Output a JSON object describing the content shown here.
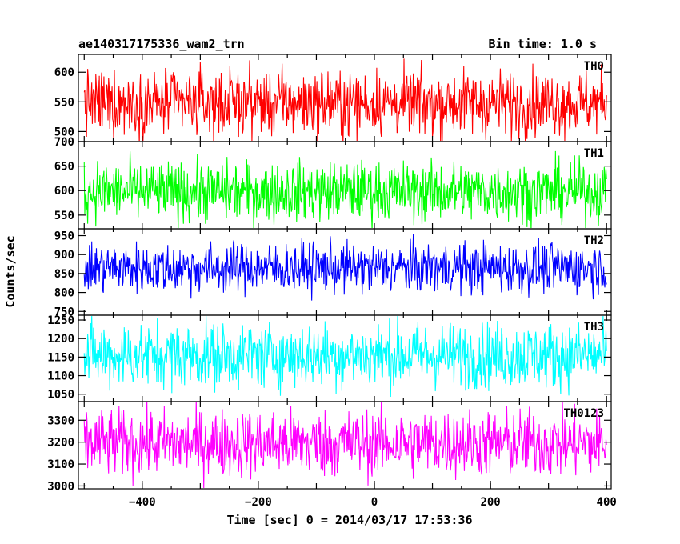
{
  "chart_data": {
    "type": "line",
    "title_left": "ae140317175336_wam2_trn",
    "title_right": "Bin time: 1.0 s",
    "xlabel": "Time [sec] 0 = 2014/03/17 17:53:36",
    "ylabel": "Counts/sec",
    "xlim": [
      -510,
      408
    ],
    "x_ticks": [
      -400,
      -200,
      0,
      200,
      400
    ],
    "data_x_range": [
      -500,
      400
    ],
    "bin_time_s": 1.0,
    "panels": [
      {
        "name": "TH0",
        "color": "#ff0000",
        "ylim": [
          483,
          630
        ],
        "yticks": [
          500,
          550,
          600
        ],
        "mean": 548,
        "amplitude": 50
      },
      {
        "name": "TH1",
        "color": "#00ff00",
        "ylim": [
          522,
          700
        ],
        "yticks": [
          550,
          600,
          650,
          700
        ],
        "mean": 598,
        "amplitude": 55
      },
      {
        "name": "TH2",
        "color": "#0000ff",
        "ylim": [
          740,
          968
        ],
        "yticks": [
          750,
          800,
          850,
          900,
          950
        ],
        "mean": 865,
        "amplitude": 60
      },
      {
        "name": "TH3",
        "color": "#00ffff",
        "ylim": [
          1030,
          1263
        ],
        "yticks": [
          1050,
          1100,
          1150,
          1200,
          1250
        ],
        "mean": 1155,
        "amplitude": 80
      },
      {
        "name": "TH0123",
        "color": "#ff00ff",
        "ylim": [
          2987,
          3385
        ],
        "yticks": [
          3000,
          3100,
          3200,
          3300
        ],
        "mean": 3195,
        "amplitude": 140
      }
    ]
  }
}
